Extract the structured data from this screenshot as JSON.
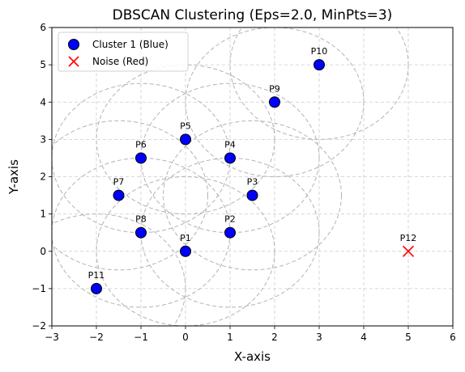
{
  "chart_data": {
    "type": "scatter",
    "title": "DBSCAN Clustering (Eps=2.0, MinPts=3)",
    "xlabel": "X-axis",
    "ylabel": "Y-axis",
    "xlim": [
      -3,
      6
    ],
    "ylim": [
      -2,
      6
    ],
    "xticks": [
      -3,
      -2,
      -1,
      0,
      1,
      2,
      3,
      4,
      5,
      6
    ],
    "yticks": [
      -2,
      -1,
      0,
      1,
      2,
      3,
      4,
      5,
      6
    ],
    "grid": true,
    "eps": 2.0,
    "legend": {
      "placement": "top-left",
      "entries": [
        {
          "label": "Cluster 1 (Blue)",
          "marker": "circle",
          "color": "#0000ff"
        },
        {
          "label": "Noise (Red)",
          "marker": "x",
          "color": "#ff0000"
        }
      ]
    },
    "series": [
      {
        "name": "Cluster 1 (Blue)",
        "marker": "circle",
        "color": "#0000ff",
        "points": [
          {
            "label": "P1",
            "x": 0,
            "y": 0
          },
          {
            "label": "P2",
            "x": 1,
            "y": 0.5
          },
          {
            "label": "P3",
            "x": 1.5,
            "y": 1.5
          },
          {
            "label": "P4",
            "x": 1,
            "y": 2.5
          },
          {
            "label": "P5",
            "x": 0,
            "y": 3
          },
          {
            "label": "P6",
            "x": -1,
            "y": 2.5
          },
          {
            "label": "P7",
            "x": -1.5,
            "y": 1.5
          },
          {
            "label": "P8",
            "x": -1,
            "y": 0.5
          },
          {
            "label": "P9",
            "x": 2,
            "y": 4
          },
          {
            "label": "P10",
            "x": 3,
            "y": 5
          },
          {
            "label": "P11",
            "x": -2,
            "y": -1
          }
        ]
      },
      {
        "name": "Noise (Red)",
        "marker": "x",
        "color": "#ff0000",
        "points": [
          {
            "label": "P12",
            "x": 5,
            "y": 0
          }
        ]
      }
    ]
  }
}
